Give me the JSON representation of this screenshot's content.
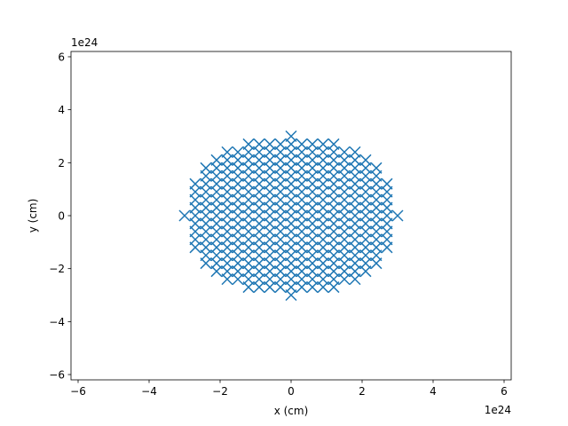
{
  "chart_data": {
    "type": "scatter",
    "title": "",
    "xlabel": "x (cm)",
    "ylabel": "y (cm)",
    "x_offset_label": "1e24",
    "y_offset_label": "1e24",
    "xlim": [
      -6.2,
      6.2
    ],
    "ylim": [
      -6.2,
      6.2
    ],
    "xticks": [
      -6,
      -4,
      -2,
      0,
      2,
      4,
      6
    ],
    "yticks": [
      -6,
      -4,
      -2,
      0,
      2,
      4,
      6
    ],
    "grid": false,
    "legend": "none",
    "marker": "x",
    "color": "#1f77b4",
    "series": [
      {
        "region": "filled ellipse of grid points",
        "center": [
          0,
          0
        ],
        "x_range": [
          -3.0,
          3.0
        ],
        "y_range": [
          -3.0,
          3.0
        ],
        "spacing": 0.3
      }
    ]
  }
}
